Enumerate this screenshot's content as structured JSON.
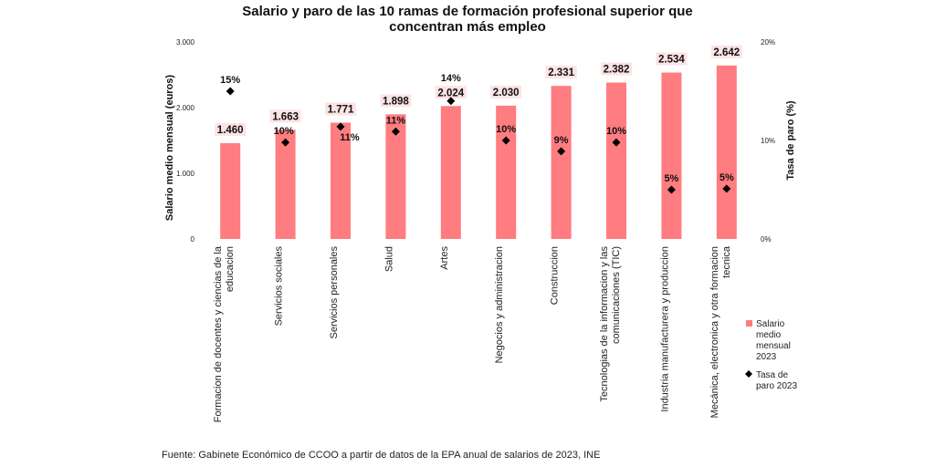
{
  "chart_data": {
    "type": "bar",
    "title_lines": [
      "Salario y paro de las 10 ramas de formación profesional superior que",
      "concentran más empleo"
    ],
    "categories": [
      [
        "Formacion de docentes y ciencias de la",
        "educacion"
      ],
      [
        "Servicios sociales"
      ],
      [
        "Servicios personales"
      ],
      [
        "Salud"
      ],
      [
        "Artes"
      ],
      [
        "Negocios y administracion"
      ],
      [
        "Construccion"
      ],
      [
        "Tecnologias de la informacion y las",
        "comunicaciones (TIC)"
      ],
      [
        "Industria manufacturera y produccion"
      ],
      [
        "Mecánica, electronica y otra formacion",
        "tecnica"
      ]
    ],
    "series": [
      {
        "name": "Salario medio mensual 2023",
        "kind": "bar",
        "axis": "left",
        "color": "#ff7c80",
        "values": [
          1460,
          1663,
          1771,
          1898,
          2024,
          2030,
          2331,
          2382,
          2534,
          2642
        ],
        "labels": [
          "1.460",
          "1.663",
          "1.771",
          "1.898",
          "2.024",
          "2.030",
          "2.331",
          "2.382",
          "2.534",
          "2.642"
        ]
      },
      {
        "name": "Tasa de paro 2023",
        "kind": "marker",
        "marker": "diamond",
        "axis": "right",
        "color": "#000000",
        "values": [
          15.0,
          9.8,
          11.4,
          10.9,
          14.0,
          10.0,
          8.9,
          9.8,
          5.0,
          5.1
        ],
        "labels": [
          "15%",
          "10%",
          "11%",
          "11%",
          "14%",
          "10%",
          "9%",
          "10%",
          "5%",
          "5%"
        ]
      }
    ],
    "left_axis": {
      "label": "Salario medio mensual (euros)",
      "ylim": [
        0,
        3000
      ],
      "ticks": [
        0,
        1000,
        2000,
        3000
      ],
      "tick_labels": [
        "0",
        "1.000",
        "2.000",
        "3.000"
      ]
    },
    "right_axis": {
      "label": "Tasa de paro (%)",
      "ylim": [
        0,
        20
      ],
      "ticks": [
        0,
        10,
        20
      ],
      "tick_labels": [
        "0%",
        "10%",
        "20%"
      ]
    },
    "legend": {
      "position": "right",
      "items": [
        {
          "lines": [
            "Salario",
            "medio",
            "mensual",
            "2023"
          ],
          "symbol": "square",
          "color": "#ff7c80"
        },
        {
          "lines": [
            "Tasa de",
            "paro 2023"
          ],
          "symbol": "diamond",
          "color": "#000000"
        }
      ]
    },
    "grid": false,
    "source": "Fuente: Gabinete Económico de CCOO a partir de datos de la EPA anual de salarios de 2023, INE"
  }
}
